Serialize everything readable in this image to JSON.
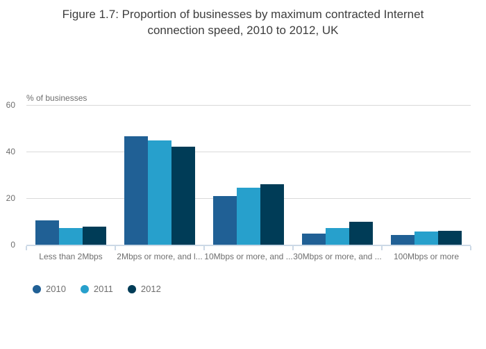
{
  "header": {
    "title_line1": "Figure 1.7: Proportion of businesses by maximum contracted Internet",
    "title_line2": "connection speed, 2010 to 2012, UK"
  },
  "chart_data": {
    "type": "bar",
    "title": "Figure 1.7: Proportion of businesses by maximum contracted Internet connection speed, 2010 to 2012, UK",
    "ylabel": "% of businesses",
    "xlabel": "",
    "categories": [
      "Less than 2Mbps",
      "2Mbps or more, and l...",
      "10Mbps or more, and ...",
      "30Mbps or more, and ...",
      "100Mbps or more"
    ],
    "series": [
      {
        "name": "2010",
        "color": "#206095",
        "values": [
          10.6,
          46.5,
          20.9,
          4.9,
          4.3
        ]
      },
      {
        "name": "2011",
        "color": "#27A0CC",
        "values": [
          7.3,
          44.9,
          24.5,
          7.3,
          5.7
        ]
      },
      {
        "name": "2012",
        "color": "#003C57",
        "values": [
          7.9,
          42.0,
          26.1,
          10.0,
          6.0
        ]
      }
    ],
    "ylim": [
      0,
      60
    ],
    "yticks": [
      0,
      20,
      40,
      60
    ],
    "grid": true,
    "legend_position": "bottom-left"
  },
  "colors": {
    "background": "#ffffff",
    "title_text": "#3d3d3d",
    "axis_text": "#6e6e6e",
    "gridline": "#d9d9d9",
    "axis_line": "#ccd9e6"
  }
}
